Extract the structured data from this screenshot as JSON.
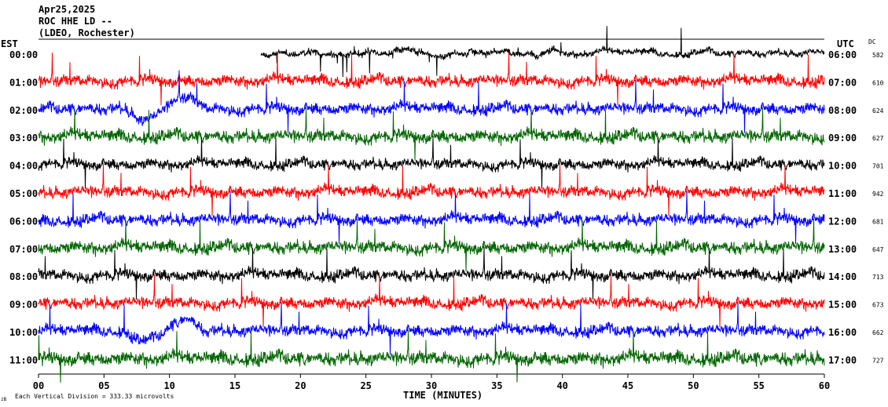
{
  "header": {
    "date": "Apr25,2025",
    "channel": "ROC HHE LD --",
    "network": "(LDEO, Rochester)"
  },
  "axes": {
    "left_title": "EST",
    "right_title": "UTC",
    "dc_title": "DC",
    "xlabel": "TIME (MINUTES)",
    "footer_left": "Each Vertical Division =  333.33 microvolts",
    "footer_mark": "zB"
  },
  "colors": {
    "cycle": [
      "#000000",
      "#ff0000",
      "#0000ff",
      "#006400"
    ],
    "frame": "#000000",
    "background": "#ffffff"
  },
  "chart_data": {
    "type": "line",
    "subtype": "helicorder",
    "x_ticks": [
      "00",
      "05",
      "10",
      "15",
      "20",
      "25",
      "30",
      "35",
      "40",
      "45",
      "50",
      "55",
      "60"
    ],
    "xlim": [
      0,
      60
    ],
    "rows": [
      {
        "est": "00:00",
        "utc": "06:00",
        "dc": "582",
        "color": "#000000",
        "start_min": 17,
        "amp": 0.3
      },
      {
        "est": "01:00",
        "utc": "07:00",
        "dc": "610",
        "color": "#ff0000",
        "start_min": 0,
        "amp": 0.55
      },
      {
        "est": "02:00",
        "utc": "08:00",
        "dc": "624",
        "color": "#0000ff",
        "start_min": 0,
        "amp": 0.55
      },
      {
        "est": "03:00",
        "utc": "09:00",
        "dc": "627",
        "color": "#006400",
        "start_min": 0,
        "amp": 0.6
      },
      {
        "est": "04:00",
        "utc": "10:00",
        "dc": "701",
        "color": "#000000",
        "start_min": 0,
        "amp": 0.5
      },
      {
        "est": "05:00",
        "utc": "11:00",
        "dc": "942",
        "color": "#ff0000",
        "start_min": 0,
        "amp": 0.55
      },
      {
        "est": "06:00",
        "utc": "12:00",
        "dc": "681",
        "color": "#0000ff",
        "start_min": 0,
        "amp": 0.55
      },
      {
        "est": "07:00",
        "utc": "13:00",
        "dc": "647",
        "color": "#006400",
        "start_min": 0,
        "amp": 0.6
      },
      {
        "est": "08:00",
        "utc": "14:00",
        "dc": "713",
        "color": "#000000",
        "start_min": 0,
        "amp": 0.55
      },
      {
        "est": "09:00",
        "utc": "15:00",
        "dc": "673",
        "color": "#ff0000",
        "start_min": 0,
        "amp": 0.55
      },
      {
        "est": "10:00",
        "utc": "16:00",
        "dc": "662",
        "color": "#0000ff",
        "start_min": 0,
        "amp": 0.55
      },
      {
        "est": "11:00",
        "utc": "17:00",
        "dc": "727",
        "color": "#006400",
        "start_min": 0,
        "amp": 0.65
      }
    ]
  }
}
